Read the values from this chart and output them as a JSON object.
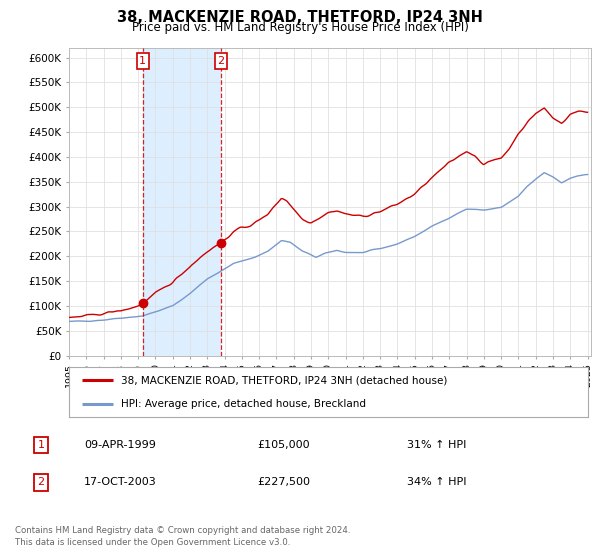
{
  "title": "38, MACKENZIE ROAD, THETFORD, IP24 3NH",
  "subtitle": "Price paid vs. HM Land Registry's House Price Index (HPI)",
  "ylabel_ticks": [
    "£0",
    "£50K",
    "£100K",
    "£150K",
    "£200K",
    "£250K",
    "£300K",
    "£350K",
    "£400K",
    "£450K",
    "£500K",
    "£550K",
    "£600K"
  ],
  "ytick_vals": [
    0,
    50000,
    100000,
    150000,
    200000,
    250000,
    300000,
    350000,
    400000,
    450000,
    500000,
    550000,
    600000
  ],
  "ylim": [
    0,
    620000
  ],
  "xlim_start": 1995.0,
  "xlim_end": 2025.2,
  "line1_label": "38, MACKENZIE ROAD, THETFORD, IP24 3NH (detached house)",
  "line1_color": "#cc0000",
  "line2_label": "HPI: Average price, detached house, Breckland",
  "line2_color": "#7799cc",
  "point1_date": 1999.27,
  "point1_value": 105000,
  "point1_text": "09-APR-1999",
  "point1_price": "£105,000",
  "point1_hpi": "31% ↑ HPI",
  "point2_date": 2003.8,
  "point2_value": 227500,
  "point2_text": "17-OCT-2003",
  "point2_price": "£227,500",
  "point2_hpi": "34% ↑ HPI",
  "shade_color": "#ddeeff",
  "footer1": "Contains HM Land Registry data © Crown copyright and database right 2024.",
  "footer2": "This data is licensed under the Open Government Licence v3.0.",
  "plot_background": "#ffffff",
  "grid_color": "#e0e0e0",
  "hpi_anchors_t": [
    1995.0,
    1996.0,
    1997.0,
    1998.0,
    1999.27,
    2000.0,
    2001.0,
    2002.0,
    2003.0,
    2003.8,
    2004.5,
    2005.5,
    2006.5,
    2007.3,
    2007.8,
    2008.5,
    2009.3,
    2009.8,
    2010.5,
    2011.0,
    2012.0,
    2013.0,
    2014.0,
    2015.0,
    2016.0,
    2017.0,
    2018.0,
    2019.0,
    2020.0,
    2021.0,
    2021.5,
    2022.0,
    2022.5,
    2023.0,
    2023.5,
    2024.0,
    2024.9
  ],
  "hpi_anchors_v": [
    68000,
    70000,
    72000,
    76000,
    80000,
    88000,
    100000,
    125000,
    155000,
    170000,
    185000,
    195000,
    210000,
    232000,
    228000,
    210000,
    198000,
    205000,
    212000,
    208000,
    207000,
    215000,
    225000,
    240000,
    260000,
    278000,
    295000,
    293000,
    298000,
    320000,
    340000,
    355000,
    368000,
    360000,
    348000,
    358000,
    365000
  ],
  "prop_anchors_t": [
    1995.0,
    1995.5,
    1996.0,
    1996.5,
    1997.0,
    1997.5,
    1998.0,
    1998.5,
    1999.0,
    1999.27,
    2000.0,
    2001.0,
    2002.0,
    2003.0,
    2003.8,
    2004.5,
    2005.0,
    2005.5,
    2006.0,
    2006.5,
    2007.3,
    2007.6,
    2008.0,
    2008.5,
    2009.0,
    2009.5,
    2010.0,
    2010.5,
    2011.0,
    2012.0,
    2013.0,
    2014.0,
    2015.0,
    2016.0,
    2017.0,
    2017.5,
    2018.0,
    2018.5,
    2019.0,
    2019.5,
    2020.0,
    2020.5,
    2021.0,
    2021.5,
    2022.0,
    2022.5,
    2023.0,
    2023.5,
    2024.0,
    2024.5,
    2024.9
  ],
  "prop_anchors_v": [
    75000,
    78000,
    80000,
    82000,
    85000,
    88000,
    90000,
    95000,
    100000,
    105000,
    125000,
    148000,
    180000,
    210000,
    227500,
    248000,
    258000,
    262000,
    272000,
    285000,
    318000,
    312000,
    295000,
    275000,
    268000,
    278000,
    288000,
    292000,
    285000,
    280000,
    290000,
    305000,
    325000,
    358000,
    388000,
    400000,
    412000,
    402000,
    385000,
    392000,
    398000,
    418000,
    448000,
    468000,
    488000,
    498000,
    478000,
    468000,
    486000,
    492000,
    490000
  ]
}
